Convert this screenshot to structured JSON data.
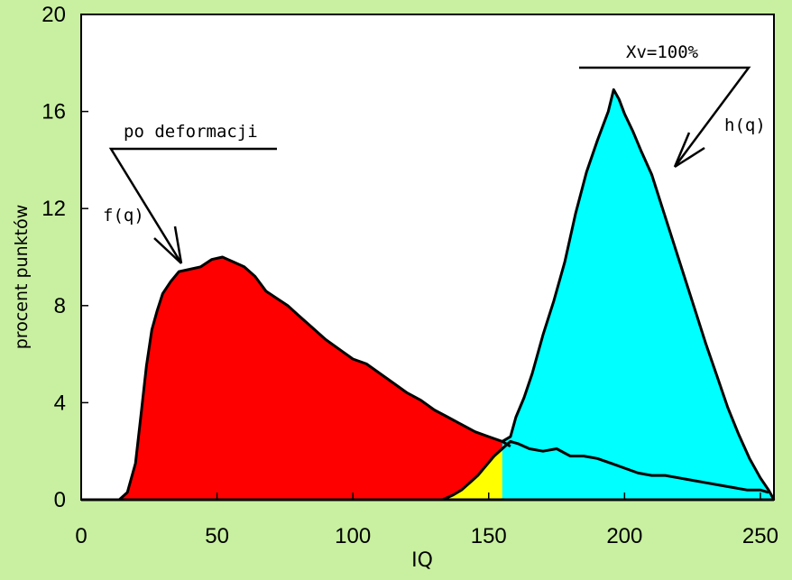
{
  "chart_data": {
    "type": "area",
    "xlabel": "IQ",
    "ylabel": "procent punktów",
    "xlim": [
      0,
      255
    ],
    "ylim": [
      0,
      20
    ],
    "x_ticks": [
      "0",
      "50",
      "100",
      "150",
      "200",
      "250"
    ],
    "y_ticks": [
      "0",
      "4",
      "8",
      "12",
      "16",
      "20"
    ],
    "grid": false,
    "series": [
      {
        "name": "f(q)",
        "color": "#ff0000",
        "x": [
          0,
          14,
          17,
          20,
          22,
          24,
          26,
          28,
          30,
          33,
          36,
          40,
          44,
          48,
          52,
          56,
          60,
          64,
          68,
          72,
          76,
          80,
          85,
          90,
          95,
          100,
          105,
          110,
          115,
          120,
          125,
          130,
          135,
          140,
          145,
          150,
          155,
          158
        ],
        "y": [
          0,
          0,
          0.3,
          1.5,
          3.5,
          5.5,
          7,
          7.8,
          8.5,
          9,
          9.4,
          9.5,
          9.6,
          9.9,
          10,
          9.8,
          9.6,
          9.2,
          8.6,
          8.3,
          8,
          7.6,
          7.1,
          6.6,
          6.2,
          5.8,
          5.6,
          5.2,
          4.8,
          4.4,
          4.1,
          3.7,
          3.4,
          3.1,
          2.8,
          2.6,
          2.4,
          2.2
        ]
      },
      {
        "name": "",
        "color": "#ffff00",
        "x": [
          133,
          137,
          140,
          143,
          146,
          149,
          152,
          155,
          158,
          161,
          165,
          170,
          175,
          180,
          185,
          190,
          195,
          200,
          205,
          210,
          215,
          220,
          225,
          230,
          235,
          240,
          245,
          250,
          253
        ],
        "y": [
          0,
          0.2,
          0.4,
          0.7,
          1,
          1.4,
          1.8,
          2.1,
          2.4,
          2.3,
          2.1,
          2,
          2.1,
          1.8,
          1.8,
          1.7,
          1.5,
          1.3,
          1.1,
          1,
          1,
          0.9,
          0.8,
          0.7,
          0.6,
          0.5,
          0.4,
          0.4,
          0.3
        ]
      },
      {
        "name": "h(q)",
        "color": "#00ffff",
        "x": [
          155,
          158,
          160,
          163,
          166,
          170,
          174,
          178,
          182,
          186,
          190,
          194,
          196,
          198,
          200,
          203,
          206,
          210,
          214,
          218,
          222,
          226,
          230,
          234,
          238,
          242,
          246,
          250,
          253,
          255
        ],
        "y": [
          2.4,
          2.6,
          3.4,
          4.2,
          5.2,
          6.8,
          8.2,
          9.8,
          11.8,
          13.5,
          14.8,
          16,
          16.9,
          16.5,
          15.9,
          15.2,
          14.4,
          13.4,
          12,
          10.6,
          9.2,
          7.8,
          6.4,
          5.1,
          3.8,
          2.7,
          1.7,
          0.9,
          0.4,
          0
        ]
      }
    ],
    "annotations": [
      "po deformacji",
      "f(q)",
      "Xv=100%",
      "h(q)"
    ]
  }
}
